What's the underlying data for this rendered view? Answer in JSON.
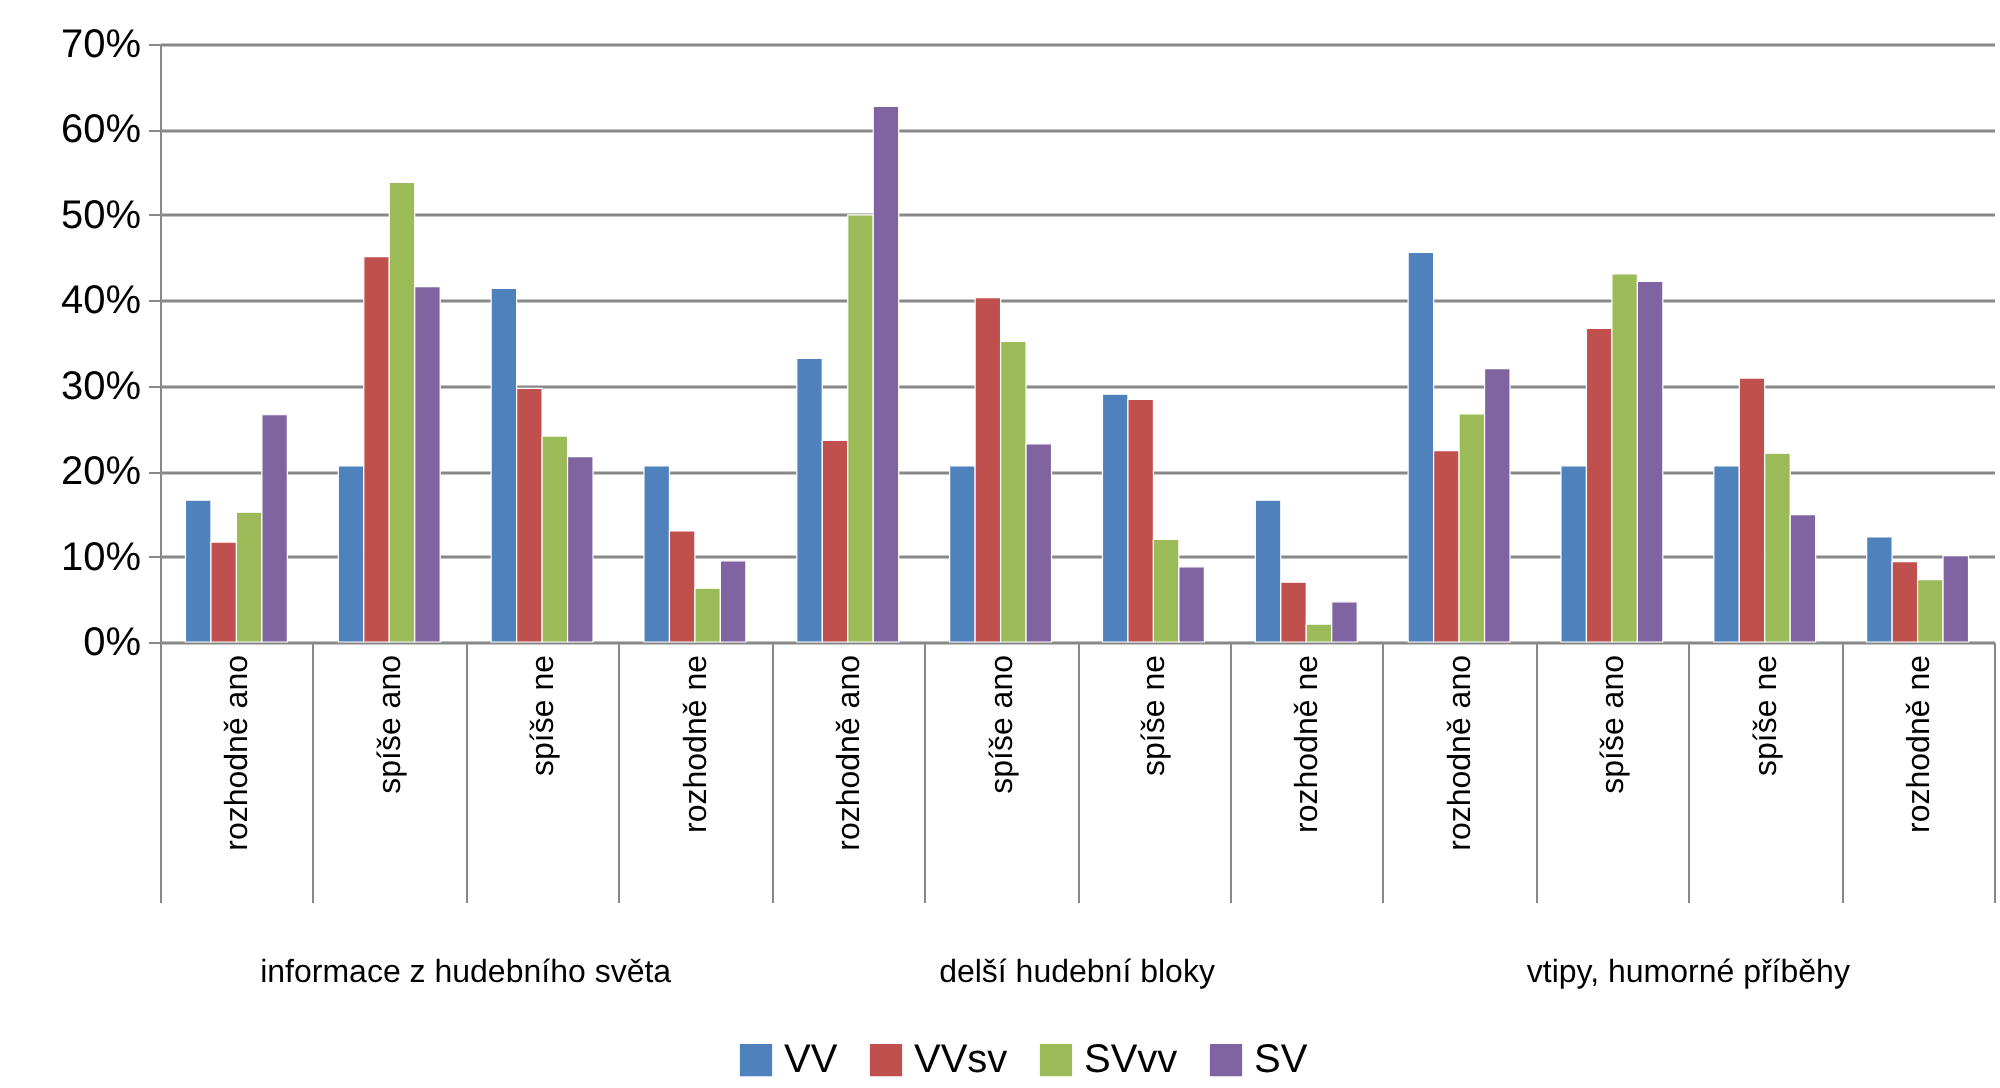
{
  "chart_data": {
    "type": "bar",
    "categories": [
      "rozhodně ano",
      "spíše ano",
      "spíše ne",
      "rozhodně ne",
      "rozhodně ano",
      "spíše ano",
      "spíše ne",
      "rozhodně ne",
      "rozhodně ano",
      "spíše ano",
      "spíše ne",
      "rozhodně ne"
    ],
    "series": [
      {
        "name": "VV",
        "color": "#4f81bd",
        "values": [
          16.6,
          20.6,
          41.4,
          20.6,
          33.2,
          20.6,
          29.0,
          16.6,
          45.6,
          20.6,
          20.6,
          12.3
        ]
      },
      {
        "name": "VVsv",
        "color": "#c0504d",
        "values": [
          11.7,
          45.1,
          29.7,
          13.0,
          23.6,
          40.3,
          28.4,
          7.0,
          22.4,
          36.7,
          30.9,
          9.4
        ]
      },
      {
        "name": "SVvv",
        "color": "#9bbb59",
        "values": [
          15.2,
          53.8,
          24.1,
          6.3,
          50.0,
          35.2,
          12.0,
          2.1,
          26.7,
          43.1,
          22.1,
          7.3
        ]
      },
      {
        "name": "SV",
        "color": "#8064a2",
        "values": [
          26.6,
          41.6,
          21.7,
          9.5,
          62.7,
          23.2,
          8.8,
          4.7,
          32.0,
          42.2,
          14.9,
          10.1
        ]
      }
    ],
    "annotations": [
      "informace z hudebního světa",
      "delší hudební bloky",
      "vtipy, humorné příběhy"
    ],
    "ylim": [
      0,
      70
    ],
    "yticks": [
      {
        "value": 0,
        "label": "0%"
      },
      {
        "value": 10,
        "label": "10%"
      },
      {
        "value": 20,
        "label": "20%"
      },
      {
        "value": 30,
        "label": "30%"
      },
      {
        "value": 40,
        "label": "40%"
      },
      {
        "value": 50,
        "label": "50%"
      },
      {
        "value": 60,
        "label": "60%"
      },
      {
        "value": 70,
        "label": "70%"
      }
    ],
    "grid": "y",
    "legend": "bottom"
  }
}
